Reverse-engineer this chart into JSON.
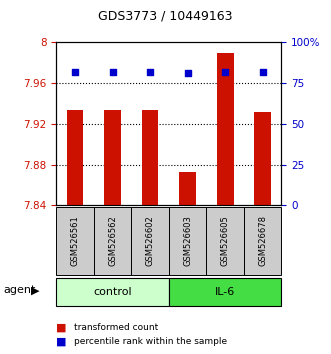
{
  "title": "GDS3773 / 10449163",
  "samples": [
    "GSM526561",
    "GSM526562",
    "GSM526602",
    "GSM526603",
    "GSM526605",
    "GSM526678"
  ],
  "bar_values": [
    7.934,
    7.934,
    7.934,
    7.873,
    7.99,
    7.932
  ],
  "percentile_values": [
    82,
    82,
    82,
    81,
    82,
    82
  ],
  "y_min": 7.84,
  "y_max": 8.0,
  "y_ticks": [
    7.84,
    7.88,
    7.92,
    7.96,
    8.0
  ],
  "y_tick_labels": [
    "7.84",
    "7.88",
    "7.92",
    "7.96",
    "8"
  ],
  "y_right_ticks": [
    0,
    25,
    50,
    75,
    100
  ],
  "y_right_labels": [
    "0",
    "25",
    "50",
    "75",
    "100%"
  ],
  "bar_color": "#cc1100",
  "dot_color": "#0000cc",
  "control_indices": [
    0,
    1,
    2
  ],
  "il6_indices": [
    3,
    4,
    5
  ],
  "control_color": "#ccffcc",
  "il6_color": "#44dd44",
  "group_label_control": "control",
  "group_label_il6": "IL-6",
  "agent_label": "agent",
  "legend_bar_label": "transformed count",
  "legend_dot_label": "percentile rank within the sample",
  "sample_box_color": "#cccccc",
  "bar_width": 0.45
}
